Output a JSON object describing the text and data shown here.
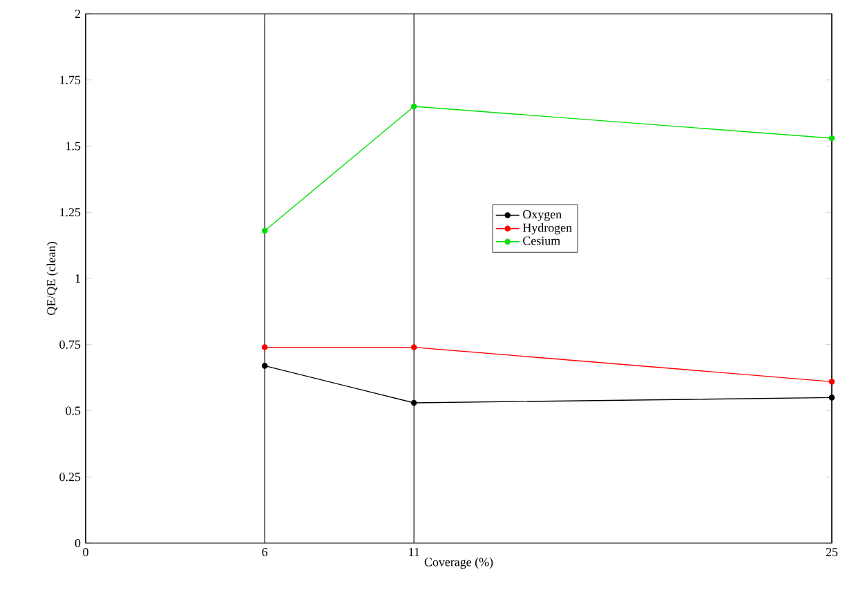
{
  "chart_data": {
    "type": "line",
    "xlabel": "Coverage (%)",
    "ylabel": "QE/QE (clean)",
    "x": [
      6,
      11,
      25
    ],
    "series": [
      {
        "name": "Oxygen",
        "color": "#000000",
        "values": [
          0.67,
          0.53,
          0.55
        ]
      },
      {
        "name": "Hydrogen",
        "color": "#ff0000",
        "values": [
          0.74,
          0.74,
          0.61
        ]
      },
      {
        "name": "Cesium",
        "color": "#00e000",
        "values": [
          1.18,
          1.65,
          1.53
        ]
      }
    ],
    "xlim": [
      0,
      25
    ],
    "xticks": [
      0,
      6,
      11,
      25
    ],
    "ylim": [
      0,
      2
    ],
    "yticks": [
      0,
      0.25,
      0.5,
      0.75,
      1,
      1.25,
      1.5,
      1.75,
      2
    ],
    "grid": "x",
    "legend": "right",
    "marker": "circle",
    "line_style": "solid"
  }
}
